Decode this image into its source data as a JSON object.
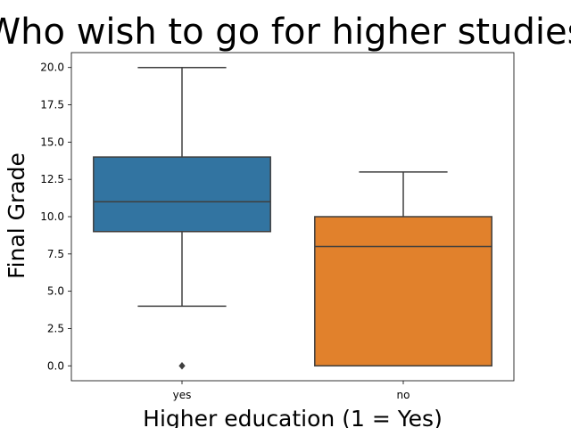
{
  "chart_data": {
    "type": "box",
    "title": "Who wish to go for higher studies",
    "xlabel": "Higher education (1 = Yes)",
    "ylabel": "Final Grade",
    "categories": [
      "yes",
      "no"
    ],
    "ylim": [
      -1,
      21
    ],
    "yticks": [
      "0.0",
      "2.5",
      "5.0",
      "7.5",
      "10.0",
      "12.5",
      "15.0",
      "17.5",
      "20.0"
    ],
    "boxes": [
      {
        "category": "yes",
        "whisker_low": 4,
        "q1": 9,
        "median": 11,
        "q3": 14,
        "whisker_high": 20,
        "outliers": [
          0
        ],
        "color": "#3274a1"
      },
      {
        "category": "no",
        "whisker_low": 0,
        "q1": 0,
        "median": 8,
        "q3": 10,
        "whisker_high": 13,
        "outliers": [],
        "color": "#e1812c"
      }
    ],
    "grid": false,
    "legend": "none"
  }
}
